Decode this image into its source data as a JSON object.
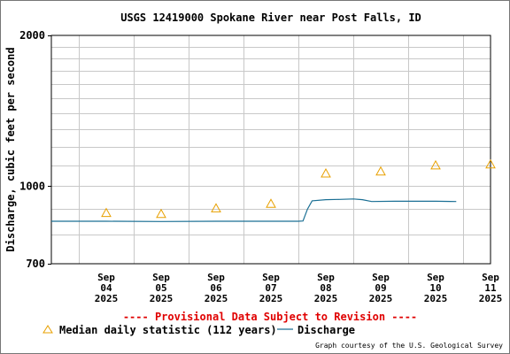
{
  "chart_data": {
    "type": "line",
    "title": "USGS 12419000 Spokane River near Post Falls, ID",
    "ylabel": "Discharge, cubic feet per second",
    "xlabel": "",
    "y_scale": "log",
    "ylim": [
      700,
      2000
    ],
    "y_ticks": [
      "700",
      "1000",
      "2000"
    ],
    "x_range": [
      "2025-09-03T12:00",
      "2025-09-11T12:00"
    ],
    "x_tick_labels": [
      {
        "mon": "Sep",
        "day": "04",
        "year": "2025"
      },
      {
        "mon": "Sep",
        "day": "05",
        "year": "2025"
      },
      {
        "mon": "Sep",
        "day": "06",
        "year": "2025"
      },
      {
        "mon": "Sep",
        "day": "07",
        "year": "2025"
      },
      {
        "mon": "Sep",
        "day": "08",
        "year": "2025"
      },
      {
        "mon": "Sep",
        "day": "09",
        "year": "2025"
      },
      {
        "mon": "Sep",
        "day": "10",
        "year": "2025"
      },
      {
        "mon": "Sep",
        "day": "11",
        "year": "2025"
      }
    ],
    "grid": true,
    "series": [
      {
        "name": "Median daily statistic (112 years)",
        "marker": "triangle",
        "color": "#e8a000",
        "points": [
          {
            "date": "2025-09-04",
            "value": 884
          },
          {
            "date": "2025-09-05",
            "value": 880
          },
          {
            "date": "2025-09-06",
            "value": 903
          },
          {
            "date": "2025-09-07",
            "value": 922
          },
          {
            "date": "2025-09-08",
            "value": 1060
          },
          {
            "date": "2025-09-09",
            "value": 1070
          },
          {
            "date": "2025-09-10",
            "value": 1100
          },
          {
            "date": "2025-09-11",
            "value": 1105
          }
        ]
      },
      {
        "name": "Discharge",
        "color": "#1a6f94",
        "points": [
          {
            "t": "2025-09-03 12:00",
            "value": 851
          },
          {
            "t": "2025-09-04 12:00",
            "value": 851
          },
          {
            "t": "2025-09-05 12:00",
            "value": 850
          },
          {
            "t": "2025-09-06 12:00",
            "value": 851
          },
          {
            "t": "2025-09-07 12:00",
            "value": 851
          },
          {
            "t": "2025-09-08 00:00",
            "value": 851
          },
          {
            "t": "2025-09-08 02:00",
            "value": 852
          },
          {
            "t": "2025-09-08 04:00",
            "value": 900
          },
          {
            "t": "2025-09-08 06:00",
            "value": 935
          },
          {
            "t": "2025-09-08 12:00",
            "value": 940
          },
          {
            "t": "2025-09-08 18:00",
            "value": 941
          },
          {
            "t": "2025-09-09 00:00",
            "value": 943
          },
          {
            "t": "2025-09-09 04:00",
            "value": 940
          },
          {
            "t": "2025-09-09 08:00",
            "value": 932
          },
          {
            "t": "2025-09-09 18:00",
            "value": 933
          },
          {
            "t": "2025-09-10 12:00",
            "value": 933
          },
          {
            "t": "2025-09-10 21:00",
            "value": 932
          }
        ]
      }
    ],
    "provisional_note": "---- Provisional Data Subject to Revision ----",
    "legend": {
      "median_label": "Median daily statistic (112 years)",
      "discharge_label": "Discharge"
    },
    "credit": "Graph courtesy of the U.S. Geological Survey"
  }
}
